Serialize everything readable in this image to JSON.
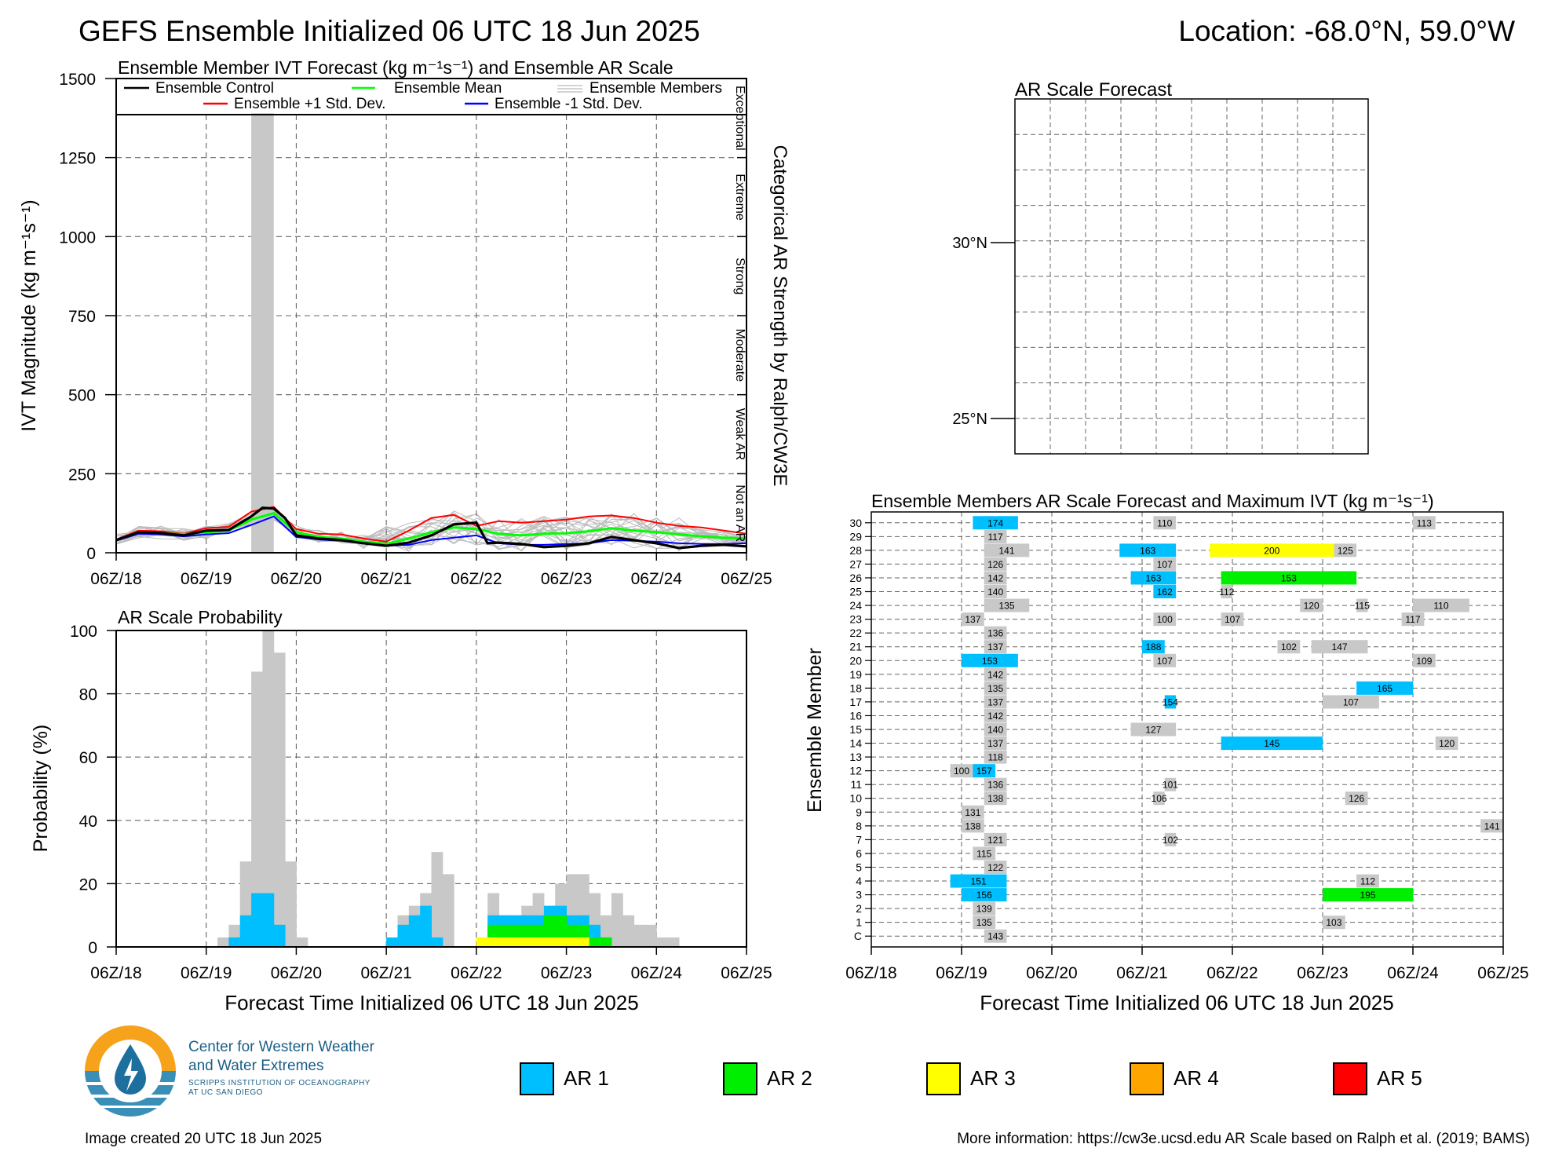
{
  "header": {
    "title": "GEFS Ensemble Initialized 06 UTC 18 Jun 2025",
    "location": "Location: -68.0°N, 59.0°W"
  },
  "colors": {
    "ar1": "#00bfff",
    "ar2": "#00ee00",
    "ar3": "#ffff00",
    "ar4": "#ffa500",
    "ar5": "#ff0000",
    "not_ar": "#c8c8c8",
    "control": "#000000",
    "mean": "#00ff00",
    "plus_std": "#ff0000",
    "minus_std": "#0000ff",
    "members": "#bbbbbb"
  },
  "time_ticks": [
    "06Z/18",
    "06Z/19",
    "06Z/20",
    "06Z/21",
    "06Z/22",
    "06Z/23",
    "06Z/24",
    "06Z/25"
  ],
  "chart_data": [
    {
      "id": "ivt",
      "type": "line",
      "title": "Ensemble Member IVT Forecast (kg m⁻¹s⁻¹) and Ensemble AR Scale",
      "ylabel": "IVT Magnitude (kg m⁻¹s⁻¹)",
      "right_label": "Categorical AR Strength by Ralph/CW3E",
      "categories_right": [
        "Not an AR",
        "Weak AR",
        "Moderate",
        "Strong",
        "Extreme",
        "Exceptional"
      ],
      "ylim": [
        0,
        1500
      ],
      "yticks": [
        0,
        250,
        500,
        750,
        1000,
        1250,
        1500
      ],
      "xlim": [
        0,
        168
      ],
      "legend": {
        "control": "Ensemble Control",
        "mean": "Ensemble Mean",
        "members": "Ensemble Members",
        "plus": "Ensemble +1 Std. Dev.",
        "minus": "Ensemble -1 Std. Dev."
      },
      "ar_bar": {
        "x0": 36,
        "x1": 42,
        "top": 1390
      },
      "series": [
        {
          "key": "control",
          "x": [
            0,
            6,
            12,
            18,
            24,
            30,
            36,
            39,
            42,
            45,
            48,
            54,
            60,
            66,
            72,
            78,
            84,
            90,
            96,
            99,
            102,
            108,
            114,
            120,
            126,
            132,
            138,
            144,
            150,
            156,
            162,
            168
          ],
          "y": [
            40,
            65,
            62,
            55,
            70,
            72,
            115,
            142,
            140,
            110,
            55,
            45,
            40,
            30,
            22,
            32,
            55,
            90,
            95,
            30,
            32,
            28,
            18,
            22,
            30,
            50,
            40,
            30,
            15,
            22,
            25,
            20
          ]
        },
        {
          "key": "mean",
          "x": [
            0,
            6,
            12,
            18,
            24,
            30,
            36,
            42,
            48,
            54,
            60,
            66,
            72,
            78,
            84,
            90,
            96,
            102,
            108,
            114,
            120,
            126,
            132,
            138,
            144,
            150,
            156,
            162,
            168
          ],
          "y": [
            40,
            65,
            62,
            58,
            65,
            70,
            105,
            125,
            65,
            50,
            45,
            35,
            28,
            45,
            65,
            80,
            75,
            60,
            55,
            60,
            62,
            68,
            78,
            70,
            65,
            58,
            52,
            48,
            45
          ]
        },
        {
          "key": "plus",
          "x": [
            0,
            6,
            12,
            18,
            24,
            30,
            36,
            42,
            48,
            54,
            60,
            66,
            72,
            78,
            84,
            90,
            96,
            102,
            108,
            114,
            120,
            126,
            132,
            138,
            144,
            150,
            156,
            162,
            168
          ],
          "y": [
            42,
            70,
            68,
            60,
            78,
            82,
            130,
            145,
            75,
            60,
            58,
            45,
            35,
            70,
            110,
            120,
            85,
            100,
            95,
            100,
            105,
            115,
            118,
            110,
            95,
            85,
            80,
            70,
            60
          ]
        },
        {
          "key": "minus",
          "x": [
            0,
            6,
            12,
            18,
            24,
            30,
            36,
            42,
            48,
            54,
            60,
            66,
            72,
            78,
            84,
            90,
            96,
            102,
            108,
            114,
            120,
            126,
            132,
            138,
            144,
            150,
            156,
            162,
            168
          ],
          "y": [
            38,
            60,
            58,
            52,
            58,
            62,
            88,
            115,
            50,
            42,
            38,
            30,
            22,
            25,
            40,
            48,
            55,
            30,
            25,
            25,
            28,
            30,
            40,
            38,
            35,
            30,
            28,
            28,
            30
          ]
        }
      ]
    },
    {
      "id": "prob",
      "type": "bar",
      "title": "AR Scale Probability",
      "ylabel": "Probability (%)",
      "xlabel": "Forecast Time Initialized 06 UTC 18 Jun 2025",
      "ylim": [
        0,
        100
      ],
      "yticks": [
        0,
        20,
        40,
        60,
        80,
        100
      ],
      "bin_hours": 3,
      "series": [
        {
          "name": "any",
          "start": 27,
          "values": [
            3,
            7,
            27,
            87,
            100,
            93,
            27,
            3
          ]
        },
        {
          "name": "ar1",
          "start": 30,
          "values": [
            3,
            10,
            17,
            17,
            7
          ]
        },
        {
          "name": "any",
          "start": 72,
          "values": [
            3,
            10,
            13,
            17,
            30,
            23
          ]
        },
        {
          "name": "ar1",
          "start": 72,
          "values": [
            3,
            7,
            10,
            13,
            3
          ]
        },
        {
          "name": "any",
          "start": 96,
          "values": [
            3,
            17,
            10,
            10,
            13,
            17,
            13,
            20,
            23,
            23,
            17,
            10,
            17,
            10,
            7,
            7,
            3,
            3
          ]
        },
        {
          "name": "ar1",
          "start": 99,
          "values": [
            10,
            10,
            10,
            10,
            10,
            13,
            13,
            10,
            10,
            7,
            3
          ]
        },
        {
          "name": "ar2",
          "start": 99,
          "values": [
            7,
            7,
            7,
            7,
            7,
            10,
            10,
            7,
            7,
            3,
            3
          ]
        },
        {
          "name": "ar3",
          "start": 96,
          "values": [
            3,
            3,
            3,
            3,
            3,
            3,
            3,
            3,
            3,
            3
          ]
        }
      ]
    },
    {
      "id": "members",
      "type": "bar",
      "title": "Ensemble Members AR Scale Forecast and Maximum IVT (kg m⁻¹s⁻¹)",
      "ylabel": "Ensemble Member",
      "xlabel": "Forecast Time Initialized 06 UTC 18 Jun 2025",
      "rows": [
        "C",
        "1",
        "2",
        "3",
        "4",
        "5",
        "6",
        "7",
        "8",
        "9",
        "10",
        "11",
        "12",
        "13",
        "14",
        "15",
        "16",
        "17",
        "18",
        "19",
        "20",
        "21",
        "22",
        "23",
        "24",
        "25",
        "26",
        "27",
        "28",
        "29",
        "30"
      ],
      "segments": [
        {
          "r": "30",
          "x0": 27,
          "x1": 39,
          "cat": 1,
          "v": "174"
        },
        {
          "r": "30",
          "x0": 75,
          "x1": 81,
          "cat": 0,
          "v": "110"
        },
        {
          "r": "30",
          "x0": 144,
          "x1": 150,
          "cat": 0,
          "v": "113"
        },
        {
          "r": "29",
          "x0": 30,
          "x1": 36,
          "cat": 0,
          "v": "117"
        },
        {
          "r": "28",
          "x0": 30,
          "x1": 42,
          "cat": 0,
          "v": "141"
        },
        {
          "r": "28",
          "x0": 66,
          "x1": 81,
          "cat": 1,
          "v": "163"
        },
        {
          "r": "28",
          "x0": 90,
          "x1": 123,
          "cat": 3,
          "v": "200"
        },
        {
          "r": "28",
          "x0": 123,
          "x1": 129,
          "cat": 0,
          "v": "125"
        },
        {
          "r": "27",
          "x0": 30,
          "x1": 36,
          "cat": 0,
          "v": "126"
        },
        {
          "r": "27",
          "x0": 75,
          "x1": 81,
          "cat": 0,
          "v": "107"
        },
        {
          "r": "26",
          "x0": 30,
          "x1": 36,
          "cat": 0,
          "v": "142"
        },
        {
          "r": "26",
          "x0": 69,
          "x1": 81,
          "cat": 1,
          "v": "163"
        },
        {
          "r": "26",
          "x0": 93,
          "x1": 129,
          "cat": 2,
          "v": "153"
        },
        {
          "r": "25",
          "x0": 30,
          "x1": 36,
          "cat": 0,
          "v": "140"
        },
        {
          "r": "25",
          "x0": 75,
          "x1": 81,
          "cat": 1,
          "v": "162"
        },
        {
          "r": "25",
          "x0": 93,
          "x1": 96,
          "cat": 0,
          "v": "112"
        },
        {
          "r": "24",
          "x0": 30,
          "x1": 42,
          "cat": 0,
          "v": "135"
        },
        {
          "r": "24",
          "x0": 114,
          "x1": 120,
          "cat": 0,
          "v": "120"
        },
        {
          "r": "24",
          "x0": 129,
          "x1": 132,
          "cat": 0,
          "v": "115"
        },
        {
          "r": "24",
          "x0": 144,
          "x1": 159,
          "cat": 0,
          "v": "110"
        },
        {
          "r": "23",
          "x0": 24,
          "x1": 30,
          "cat": 0,
          "v": "137"
        },
        {
          "r": "23",
          "x0": 75,
          "x1": 81,
          "cat": 0,
          "v": "100"
        },
        {
          "r": "23",
          "x0": 93,
          "x1": 99,
          "cat": 0,
          "v": "107"
        },
        {
          "r": "23",
          "x0": 141,
          "x1": 147,
          "cat": 0,
          "v": "117"
        },
        {
          "r": "22",
          "x0": 30,
          "x1": 36,
          "cat": 0,
          "v": "136"
        },
        {
          "r": "21",
          "x0": 30,
          "x1": 36,
          "cat": 0,
          "v": "137"
        },
        {
          "r": "21",
          "x0": 72,
          "x1": 78,
          "cat": 1,
          "v": "188"
        },
        {
          "r": "21",
          "x0": 108,
          "x1": 114,
          "cat": 0,
          "v": "102"
        },
        {
          "r": "21",
          "x0": 117,
          "x1": 132,
          "cat": 0,
          "v": "147"
        },
        {
          "r": "20",
          "x0": 24,
          "x1": 39,
          "cat": 1,
          "v": "153"
        },
        {
          "r": "20",
          "x0": 75,
          "x1": 81,
          "cat": 0,
          "v": "107"
        },
        {
          "r": "20",
          "x0": 144,
          "x1": 150,
          "cat": 0,
          "v": "109"
        },
        {
          "r": "19",
          "x0": 30,
          "x1": 36,
          "cat": 0,
          "v": "142"
        },
        {
          "r": "18",
          "x0": 30,
          "x1": 36,
          "cat": 0,
          "v": "135"
        },
        {
          "r": "18",
          "x0": 129,
          "x1": 144,
          "cat": 1,
          "v": "165"
        },
        {
          "r": "17",
          "x0": 30,
          "x1": 36,
          "cat": 0,
          "v": "137"
        },
        {
          "r": "17",
          "x0": 78,
          "x1": 81,
          "cat": 1,
          "v": "154"
        },
        {
          "r": "17",
          "x0": 120,
          "x1": 135,
          "cat": 0,
          "v": "107"
        },
        {
          "r": "16",
          "x0": 30,
          "x1": 36,
          "cat": 0,
          "v": "142"
        },
        {
          "r": "15",
          "x0": 30,
          "x1": 36,
          "cat": 0,
          "v": "140"
        },
        {
          "r": "15",
          "x0": 69,
          "x1": 81,
          "cat": 0,
          "v": "127"
        },
        {
          "r": "14",
          "x0": 30,
          "x1": 36,
          "cat": 0,
          "v": "137"
        },
        {
          "r": "14",
          "x0": 93,
          "x1": 120,
          "cat": 1,
          "v": "145"
        },
        {
          "r": "14",
          "x0": 150,
          "x1": 156,
          "cat": 0,
          "v": "120"
        },
        {
          "r": "13",
          "x0": 30,
          "x1": 36,
          "cat": 0,
          "v": "118"
        },
        {
          "r": "12",
          "x0": 21,
          "x1": 27,
          "cat": 0,
          "v": "100"
        },
        {
          "r": "12",
          "x0": 27,
          "x1": 33,
          "cat": 1,
          "v": "157"
        },
        {
          "r": "11",
          "x0": 30,
          "x1": 36,
          "cat": 0,
          "v": "136"
        },
        {
          "r": "11",
          "x0": 78,
          "x1": 81,
          "cat": 0,
          "v": "101"
        },
        {
          "r": "10",
          "x0": 30,
          "x1": 36,
          "cat": 0,
          "v": "138"
        },
        {
          "r": "10",
          "x0": 75,
          "x1": 78,
          "cat": 0,
          "v": "106"
        },
        {
          "r": "10",
          "x0": 126,
          "x1": 132,
          "cat": 0,
          "v": "126"
        },
        {
          "r": "9",
          "x0": 24,
          "x1": 30,
          "cat": 0,
          "v": "131"
        },
        {
          "r": "8",
          "x0": 24,
          "x1": 30,
          "cat": 0,
          "v": "138"
        },
        {
          "r": "8",
          "x0": 162,
          "x1": 168,
          "cat": 0,
          "v": "141"
        },
        {
          "r": "7",
          "x0": 30,
          "x1": 36,
          "cat": 0,
          "v": "121"
        },
        {
          "r": "7",
          "x0": 78,
          "x1": 81,
          "cat": 0,
          "v": "102"
        },
        {
          "r": "6",
          "x0": 27,
          "x1": 33,
          "cat": 0,
          "v": "115"
        },
        {
          "r": "5",
          "x0": 30,
          "x1": 36,
          "cat": 0,
          "v": "122"
        },
        {
          "r": "4",
          "x0": 21,
          "x1": 36,
          "cat": 1,
          "v": "151"
        },
        {
          "r": "4",
          "x0": 129,
          "x1": 135,
          "cat": 0,
          "v": "112"
        },
        {
          "r": "3",
          "x0": 24,
          "x1": 36,
          "cat": 1,
          "v": "156"
        },
        {
          "r": "3",
          "x0": 120,
          "x1": 144,
          "cat": 2,
          "v": "195"
        },
        {
          "r": "2",
          "x0": 27,
          "x1": 33,
          "cat": 0,
          "v": "139"
        },
        {
          "r": "1",
          "x0": 27,
          "x1": 33,
          "cat": 0,
          "v": "135"
        },
        {
          "r": "1",
          "x0": 120,
          "x1": 126,
          "cat": 0,
          "v": "103"
        },
        {
          "r": "C",
          "x0": 30,
          "x1": 36,
          "cat": 0,
          "v": "143"
        }
      ]
    },
    {
      "id": "map",
      "type": "other",
      "title": "AR Scale Forecast",
      "lat_labels": [
        "30°N",
        "25°N"
      ]
    }
  ],
  "legend_ar": [
    {
      "label": "AR 1",
      "color": "#00bfff"
    },
    {
      "label": "AR 2",
      "color": "#00ee00"
    },
    {
      "label": "AR 3",
      "color": "#ffff00"
    },
    {
      "label": "AR 4",
      "color": "#ffa500"
    },
    {
      "label": "AR 5",
      "color": "#ff0000"
    }
  ],
  "logo": {
    "line1": "Center for Western Weather",
    "line2": "and Water Extremes",
    "line3": "SCRIPPS INSTITUTION OF OCEANOGRAPHY",
    "line4": "AT UC SAN DIEGO",
    "icon": "cw3e-water-drop-logo"
  },
  "footer": {
    "created": "Image created 20 UTC 18 Jun 2025",
    "more_info": "More information: https://cw3e.ucsd.edu AR Scale based on Ralph et al. (2019; BAMS)"
  }
}
